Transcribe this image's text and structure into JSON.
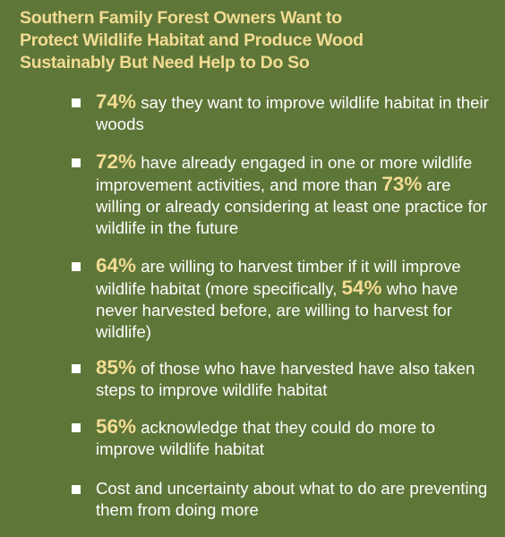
{
  "title": {
    "line1": "Southern Family Forest Owners Want to",
    "line2": "Protect Wildlife Habitat and Produce Wood",
    "line3": "Sustainably But Need Help to Do So"
  },
  "items": [
    {
      "pct": "74%",
      "text": " say they want to improve wildlife habitat in their woods"
    },
    {
      "pct": "72%",
      "text": " have already engaged in one or more wildlife improvement activities, and more than ",
      "pct2": "73%",
      "text2": " are willing or already considering at least one practice for wildlife in the future"
    },
    {
      "pct": "64%",
      "text": " are willing to harvest timber if it will improve wildlife habitat (more specifically, ",
      "pct2": "54%",
      "text2": " who have never harvested before, are willing to harvest for wildlife)"
    },
    {
      "pct": "85%",
      "text": " of those who have harvested have also taken steps to improve wildlife habitat"
    },
    {
      "pct": "56%",
      "text": " acknowledge that they could do more to improve wildlife habitat"
    },
    {
      "text": "Cost and uncertainty about what to do are preventing them from doing more"
    }
  ]
}
